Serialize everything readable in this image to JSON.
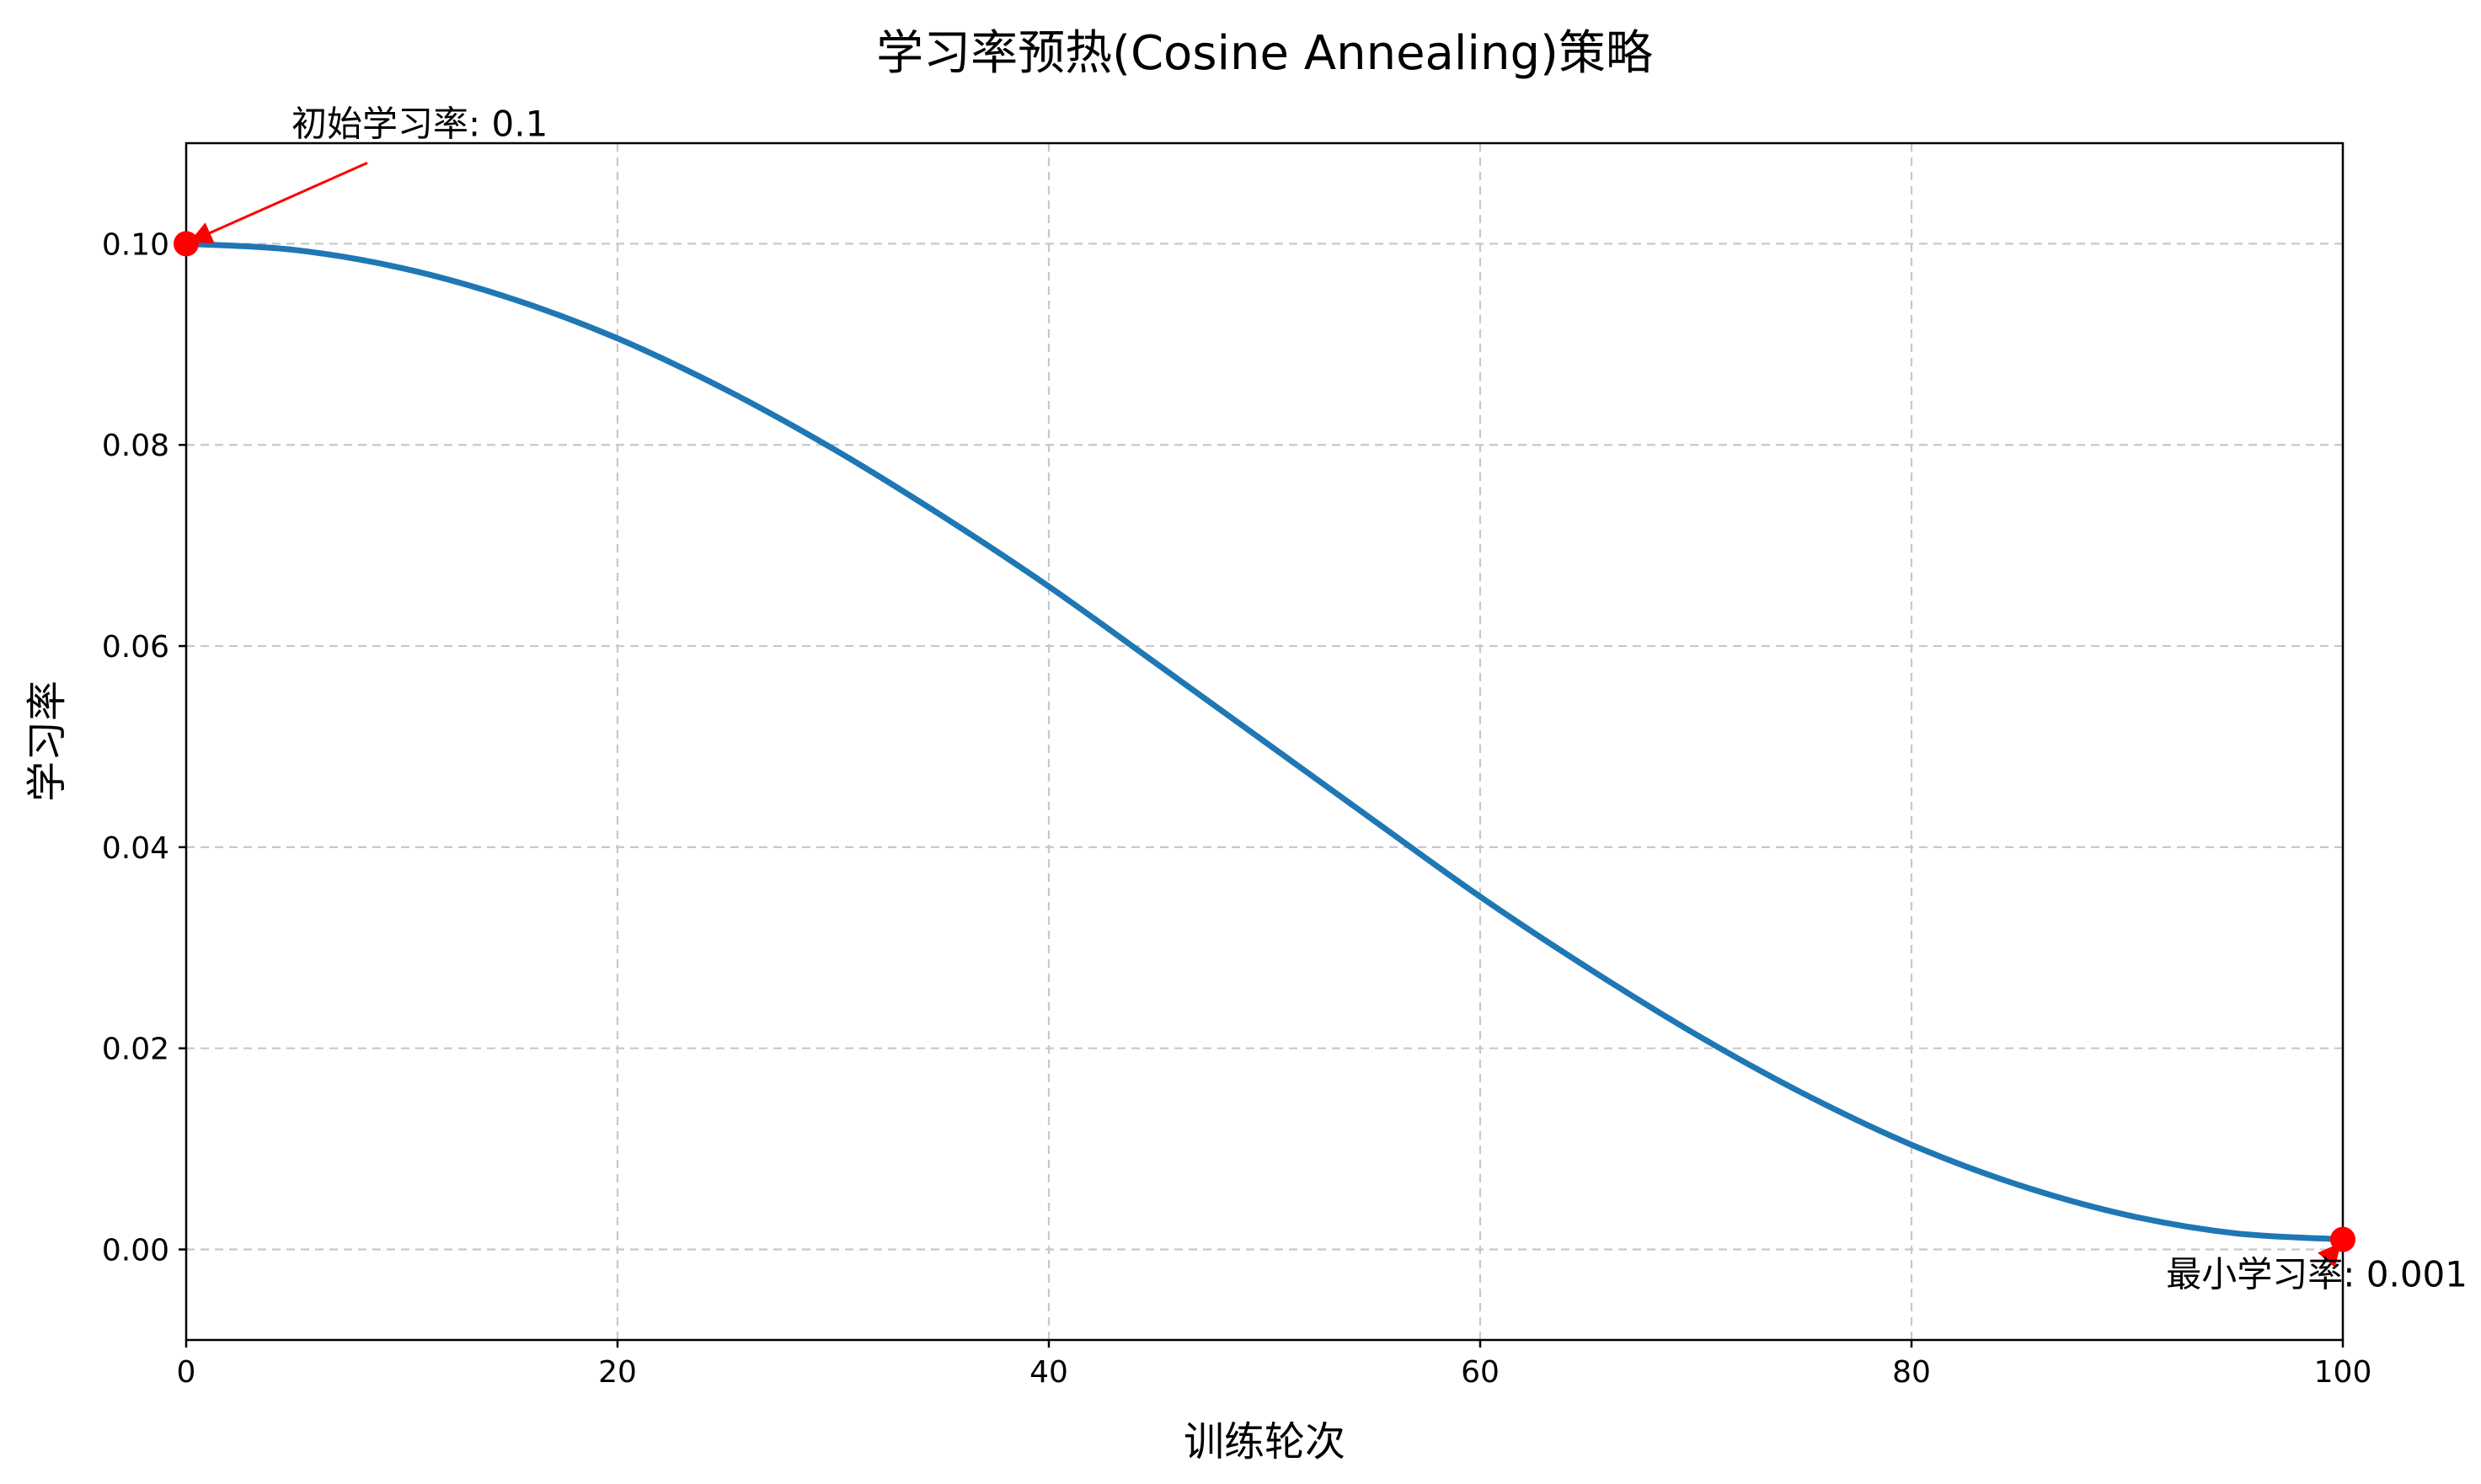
{
  "chart_data": {
    "type": "line",
    "title": "学习率预热(Cosine Annealing)策略",
    "xlabel": "训练轮次",
    "ylabel": "学习率",
    "xlim": [
      0,
      100
    ],
    "ylim": [
      -0.009,
      0.11
    ],
    "grid": true,
    "x_ticks": [
      0,
      20,
      40,
      60,
      80,
      100
    ],
    "x_tick_labels": [
      "0",
      "20",
      "40",
      "60",
      "80",
      "100"
    ],
    "y_ticks": [
      0.0,
      0.02,
      0.04,
      0.06,
      0.08,
      0.1
    ],
    "y_tick_labels": [
      "0.00",
      "0.02",
      "0.04",
      "0.06",
      "0.08",
      "0.10"
    ],
    "line_color": "#1f77b4",
    "marker_color": "#ff0000",
    "series": [
      {
        "x": [
          0,
          5,
          10,
          15,
          20,
          25,
          30,
          35,
          40,
          45,
          50,
          55,
          60,
          65,
          70,
          75,
          80,
          85,
          90,
          95,
          100
        ],
        "values": [
          0.1,
          0.09939,
          0.09758,
          0.09461,
          0.09059,
          0.08551,
          0.07961,
          0.07301,
          0.06592,
          0.05824,
          0.0505,
          0.04276,
          0.03508,
          0.02799,
          0.02139,
          0.01549,
          0.01041,
          0.00639,
          0.00342,
          0.00161,
          0.001
        ]
      }
    ],
    "annotations": [
      {
        "text": "初始学习率: 0.1",
        "x": 0,
        "y": 0.1
      },
      {
        "text": "最小学习率: 0.001",
        "x": 100,
        "y": 0.001
      }
    ]
  }
}
